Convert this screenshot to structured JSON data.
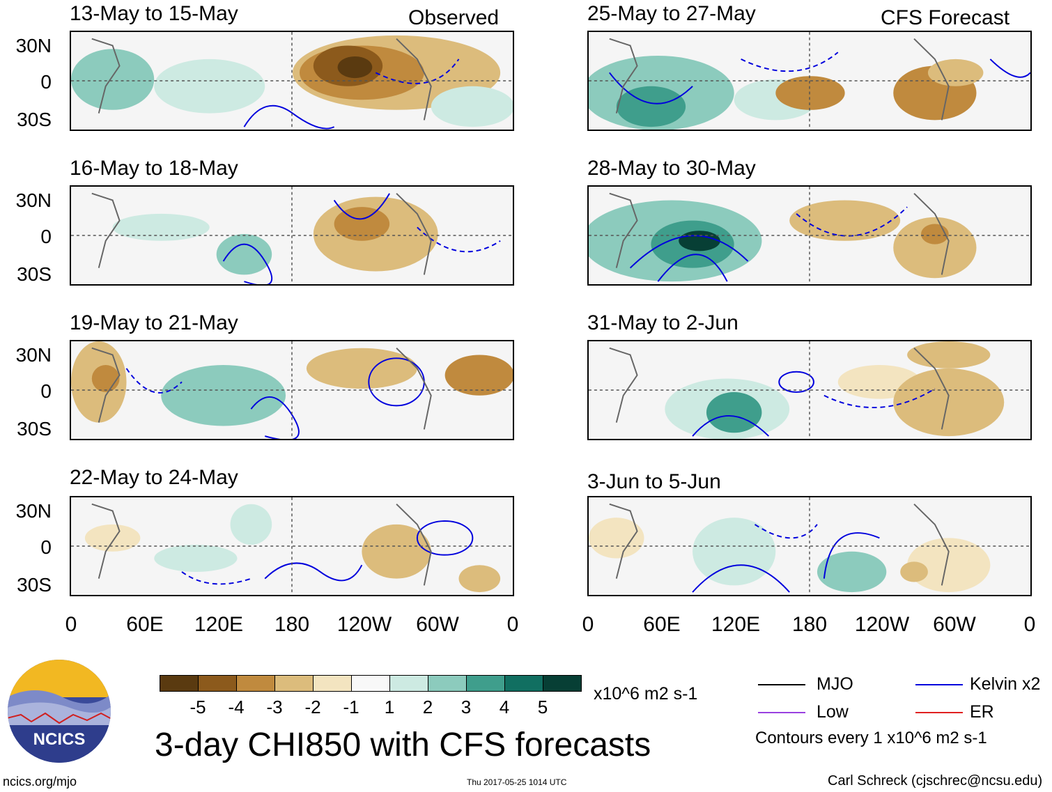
{
  "panel_tags": {
    "observed": "Observed",
    "forecast": "CFS Forecast"
  },
  "left_panels": [
    {
      "title": "13-May to 15-May"
    },
    {
      "title": "16-May to 18-May"
    },
    {
      "title": "19-May to 21-May"
    },
    {
      "title": "22-May to 24-May"
    }
  ],
  "right_panels": [
    {
      "title": "25-May to 27-May"
    },
    {
      "title": "28-May to 30-May"
    },
    {
      "title": "31-May to 2-Jun"
    },
    {
      "title": "3-Jun to 5-Jun"
    }
  ],
  "lat_labels": [
    "30N",
    "0",
    "30S"
  ],
  "lon_labels": [
    "0",
    "60E",
    "120E",
    "180",
    "120W",
    "60W",
    "0"
  ],
  "colorbar": {
    "colors": [
      "#5a3a10",
      "#8c5a1c",
      "#c08a3e",
      "#dcbc7c",
      "#f3e4c0",
      "#f8f8f8",
      "#cdeae2",
      "#8ccbbd",
      "#3f9e8c",
      "#116f61",
      "#073f35"
    ],
    "labels": [
      "-5",
      "-4",
      "-3",
      "-2",
      "-1",
      "1",
      "2",
      "3",
      "4",
      "5"
    ],
    "units": "x10^6 m2 s-1"
  },
  "legend": {
    "mjo": {
      "label": "MJO",
      "color": "#000000"
    },
    "kelvin": {
      "label": "Kelvin x2",
      "color": "#0000dd"
    },
    "low": {
      "label": "Low",
      "color": "#9a40e0"
    },
    "er": {
      "label": "ER",
      "color": "#e02020"
    },
    "contour_note": "Contours every 1 x10^6 m2 s-1"
  },
  "main_title": "3-day CHI850 with CFS forecasts",
  "logo_text": "NCICS",
  "footer": {
    "url": "ncics.org/mjo",
    "timestamp": "Thu 2017-05-25 1014 UTC",
    "author": "Carl Schreck (cjschrec@ncsu.edu)"
  }
}
